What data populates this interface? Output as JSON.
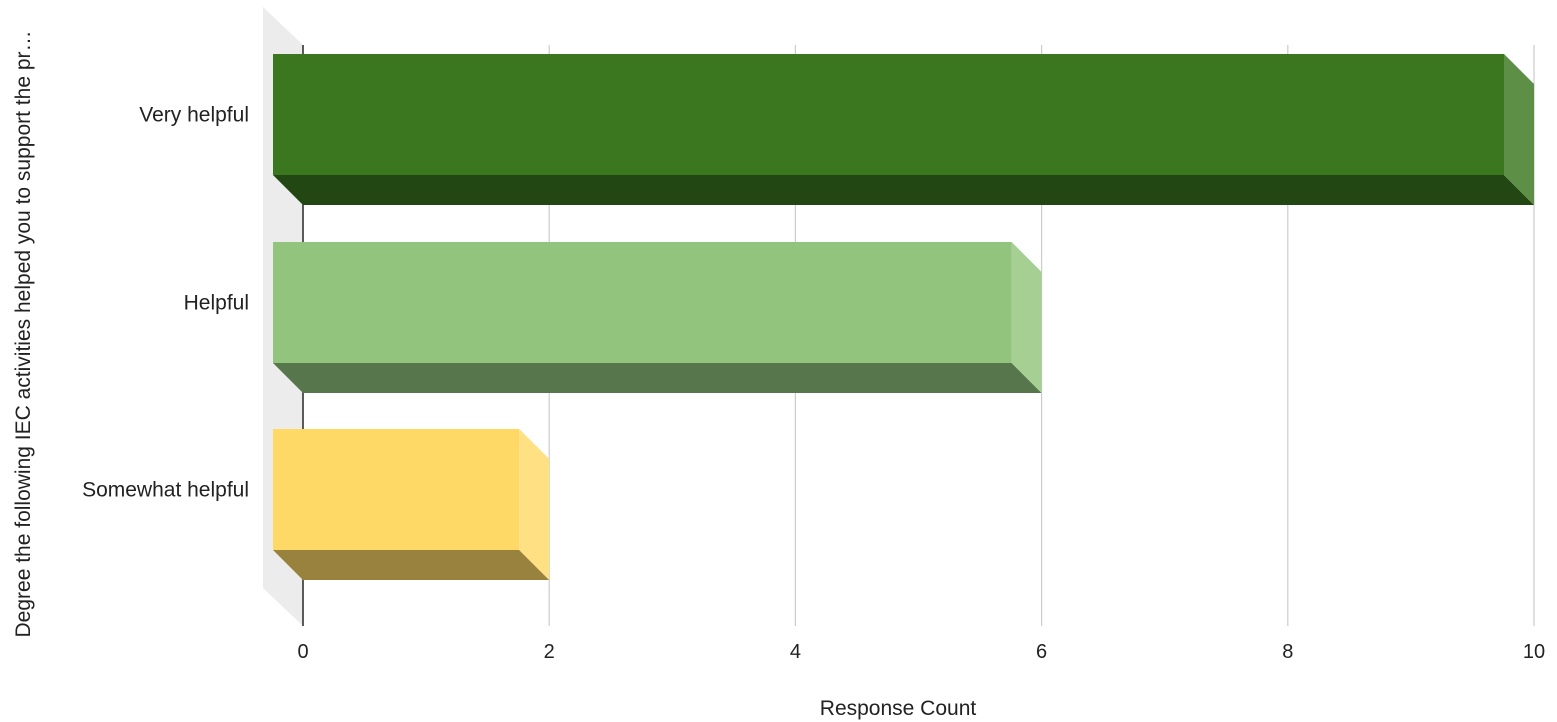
{
  "chart_data": {
    "type": "bar",
    "orientation": "horizontal",
    "style": "3d",
    "categories": [
      "Very helpful",
      "Helpful",
      "Somewhat helpful"
    ],
    "values": [
      10,
      6,
      2
    ],
    "colors": [
      "#3a771f",
      "#93c47d",
      "#ffd966"
    ],
    "xlabel": "Response Count",
    "ylabel": "Degree the following IEC activities helped you to support the pr…",
    "xlim": [
      0,
      10
    ],
    "xticks": [
      0,
      2,
      4,
      6,
      8,
      10
    ],
    "grid": true
  }
}
